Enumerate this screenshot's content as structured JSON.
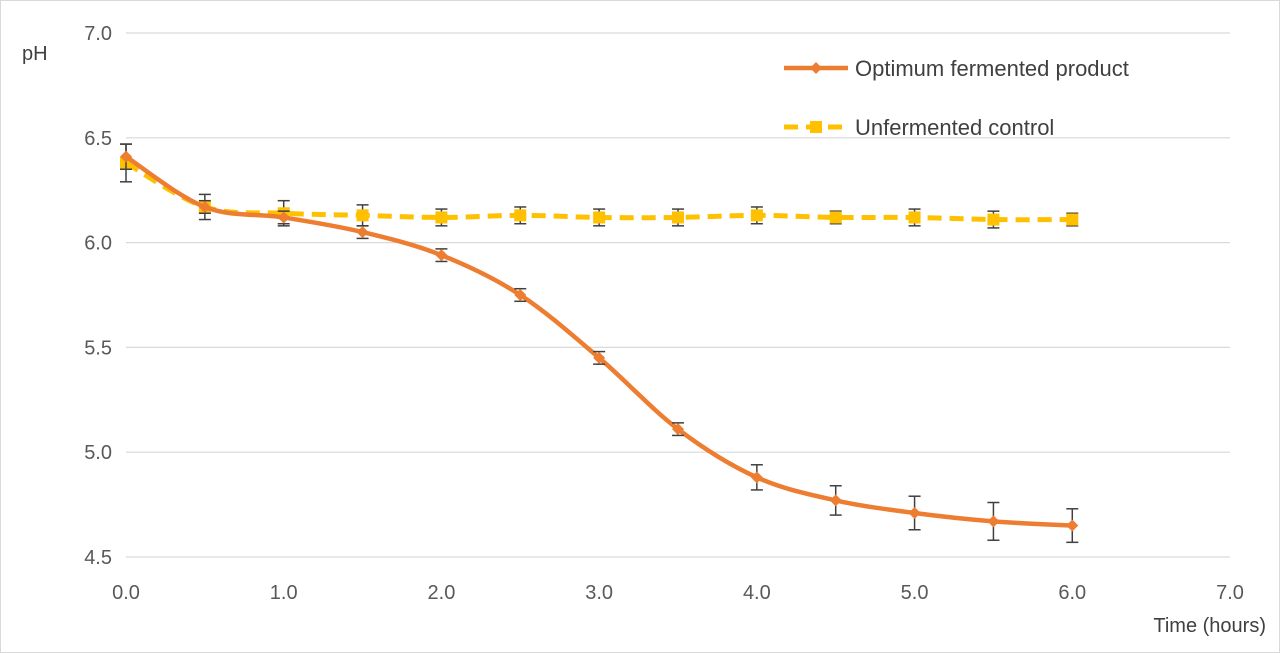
{
  "chart_data": {
    "type": "line",
    "xlabel": "Time (hours)",
    "ylabel": "pH",
    "xlim": [
      0,
      7
    ],
    "ylim": [
      4.5,
      7.0
    ],
    "x_ticks": [
      "0.0",
      "1.0",
      "2.0",
      "3.0",
      "4.0",
      "5.0",
      "6.0",
      "7.0"
    ],
    "y_ticks": [
      "4.5",
      "5.0",
      "5.5",
      "6.0",
      "6.5",
      "7.0"
    ],
    "grid": "horizontal",
    "legend_position": "top-right",
    "x": [
      0.0,
      0.5,
      1.0,
      1.5,
      2.0,
      2.5,
      3.0,
      3.5,
      4.0,
      4.5,
      5.0,
      5.5,
      6.0
    ],
    "series": [
      {
        "name": "Optimum fermented product",
        "color": "#ED7D31",
        "line_style": "solid",
        "marker": "diamond",
        "values": [
          6.41,
          6.17,
          6.12,
          6.05,
          5.94,
          5.75,
          5.45,
          5.11,
          4.88,
          4.77,
          4.71,
          4.67,
          4.65
        ],
        "errors": [
          0.06,
          0.03,
          0.03,
          0.03,
          0.03,
          0.03,
          0.03,
          0.03,
          0.06,
          0.07,
          0.08,
          0.09,
          0.08
        ]
      },
      {
        "name": "Unfermented control",
        "color": "#FFC000",
        "line_style": "dashed",
        "marker": "square",
        "values": [
          6.38,
          6.17,
          6.14,
          6.13,
          6.12,
          6.13,
          6.12,
          6.12,
          6.13,
          6.12,
          6.12,
          6.11,
          6.11
        ],
        "errors": [
          0.09,
          0.06,
          0.06,
          0.05,
          0.04,
          0.04,
          0.04,
          0.04,
          0.04,
          0.03,
          0.04,
          0.04,
          0.03
        ]
      }
    ]
  }
}
